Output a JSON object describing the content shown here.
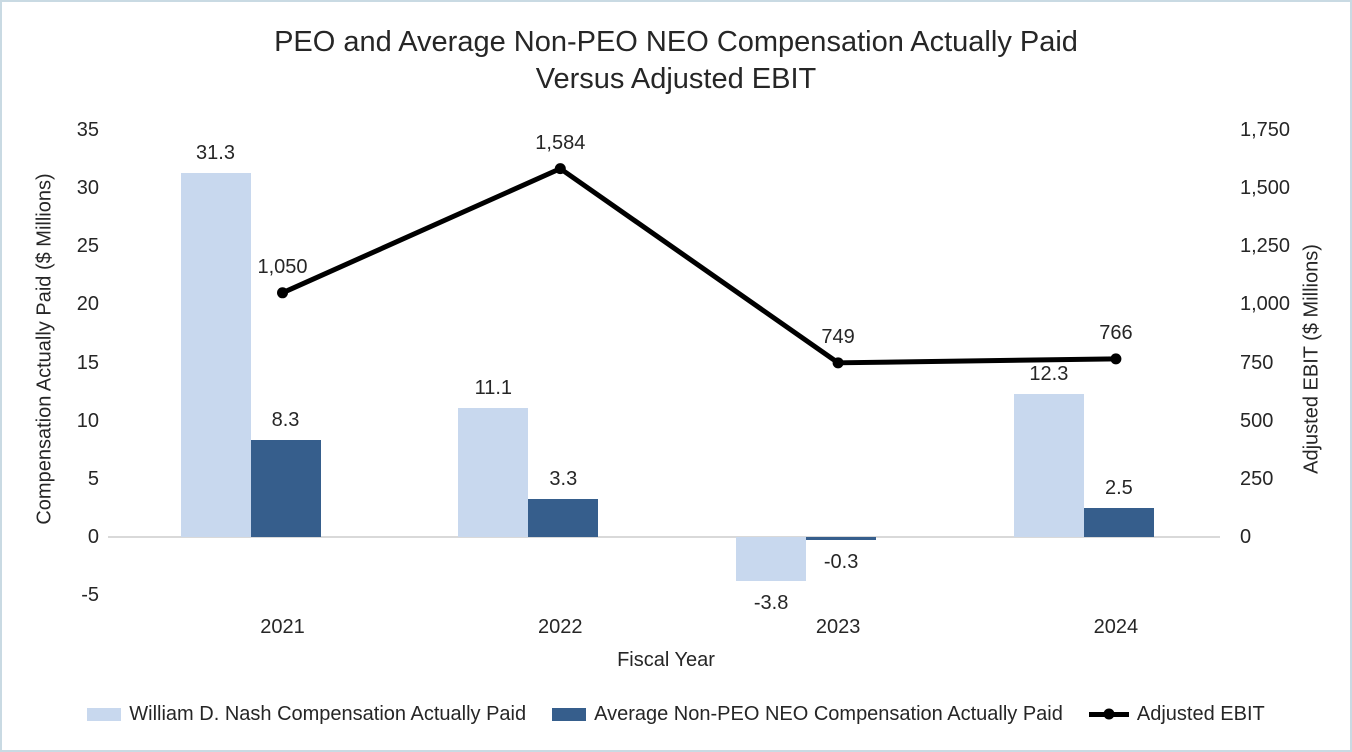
{
  "title": {
    "line1": "PEO and Average Non-PEO NEO Compensation Actually Paid",
    "line2": "Versus Adjusted EBIT"
  },
  "chart_data": {
    "type": "combo",
    "categories": [
      "2021",
      "2022",
      "2023",
      "2024"
    ],
    "series": [
      {
        "name": "William D. Nash Compensation Actually Paid",
        "type": "bar",
        "axis": "left",
        "color": "#C8D8EE",
        "values": [
          31.3,
          11.1,
          -3.8,
          12.3
        ],
        "labels": [
          "31.3",
          "11.1",
          "-3.8",
          "12.3"
        ]
      },
      {
        "name": "Average Non-PEO NEO Compensation Actually Paid",
        "type": "bar",
        "axis": "left",
        "color": "#365E8C",
        "values": [
          8.3,
          3.3,
          -0.3,
          2.5
        ],
        "labels": [
          "8.3",
          "3.3",
          "-0.3",
          "2.5"
        ]
      },
      {
        "name": "Adjusted EBIT",
        "type": "line",
        "axis": "right",
        "color": "#000000",
        "values": [
          1050,
          1584,
          749,
          766
        ],
        "labels": [
          "1,050",
          "1,584",
          "749",
          "766"
        ]
      }
    ],
    "left_axis": {
      "title": "Compensation Actually Paid ($ Millions)",
      "ticks": [
        "35",
        "30",
        "25",
        "20",
        "15",
        "10",
        "5",
        "0",
        "-5"
      ],
      "min": -5,
      "max": 35
    },
    "right_axis": {
      "title": "Adjusted EBIT ($ Millions)",
      "ticks": [
        "1,750",
        "1,500",
        "1,250",
        "1,000",
        "750",
        "500",
        "250",
        "0"
      ],
      "min": -250,
      "max": 1750
    },
    "x_axis": {
      "title": "Fiscal Year"
    },
    "legend_position": "bottom",
    "gridlines": "zero-line-only"
  },
  "palette": {
    "frame_border": "#C9DAE3",
    "zero_line": "#D9D9D9",
    "text": "#262626"
  }
}
